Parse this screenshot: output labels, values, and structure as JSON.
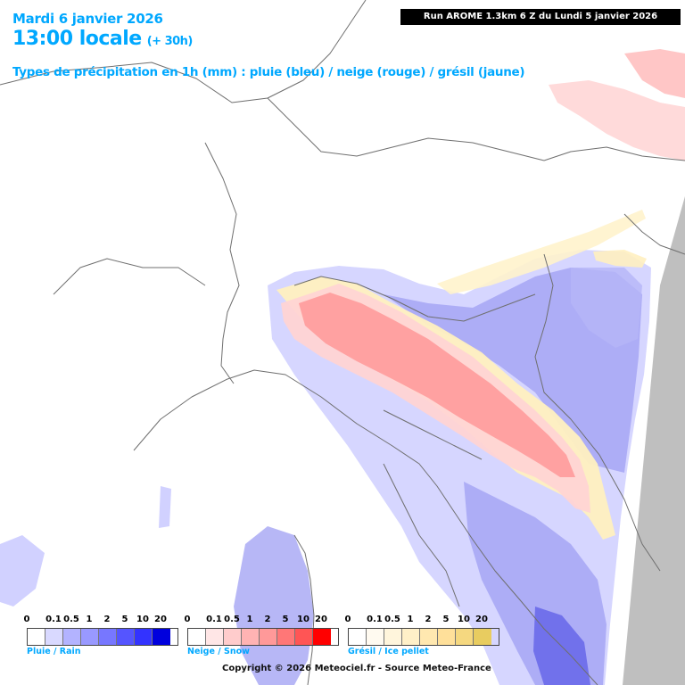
{
  "header": {
    "date": "Mardi 6 janvier 2026",
    "time": "13:00 locale",
    "lead": "(+ 30h)",
    "types": "Types de précipitation en 1h (mm) : pluie (bleu) / neige (rouge) / grésil (jaune)",
    "run": "Run AROME 1.3km 6 Z du Lundi 5 janvier 2026"
  },
  "legends": {
    "rain": {
      "ticks": [
        "0",
        "0.1",
        "0.5",
        "1",
        "2",
        "5",
        "10",
        "20"
      ],
      "colors": [
        "#ffffff",
        "#d9d9ff",
        "#b3b3ff",
        "#9999ff",
        "#7777ff",
        "#5555ff",
        "#3333ff",
        "#0000dd"
      ],
      "caption": "Pluie / Rain"
    },
    "snow": {
      "ticks": [
        "0",
        "0.1",
        "0.5",
        "1",
        "2",
        "5",
        "10",
        "20"
      ],
      "colors": [
        "#ffffff",
        "#ffe6e6",
        "#ffcccc",
        "#ffb3b3",
        "#ff9999",
        "#ff7777",
        "#ff5555",
        "#ff0000"
      ],
      "caption": "Neige / Snow"
    },
    "sleet": {
      "ticks": [
        "0",
        "0.1",
        "0.5",
        "1",
        "2",
        "5",
        "10",
        "20"
      ],
      "colors": [
        "#ffffff",
        "#fffaf0",
        "#fff5dc",
        "#fff0c8",
        "#ffe8b0",
        "#ffe09a",
        "#f5d880",
        "#e8cc60"
      ],
      "caption": "Grésil / Ice pellet"
    }
  },
  "copyright": "Copyright © 2026 Meteociel.fr - Source Meteo-France",
  "colors": {
    "title": "#00a8ff",
    "rain_light": "#c8c8ff",
    "rain_mid": "#9898f0",
    "rain_dark": "#5a5ae6",
    "snow_light": "#ffd2d2",
    "snow_mid": "#ff9a9a",
    "sleet": "#fff0c0",
    "no_data": "#bfbfbf"
  }
}
